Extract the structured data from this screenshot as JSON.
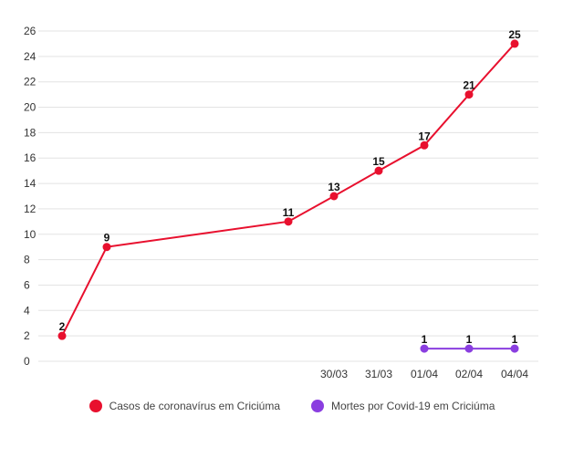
{
  "chart_data": {
    "type": "line",
    "x_ticks": [
      "30/03",
      "31/03",
      "01/04",
      "02/04",
      "04/04"
    ],
    "y_ticks": [
      0,
      2,
      4,
      6,
      8,
      10,
      12,
      14,
      16,
      18,
      20,
      22,
      24,
      26
    ],
    "ylim": [
      0,
      26
    ],
    "grid": true,
    "legend_position": "bottom",
    "series": [
      {
        "name": "Casos de coronavírus em Criciúma",
        "color": "#e8102e",
        "points": [
          {
            "x": "",
            "y": 2
          },
          {
            "x": "",
            "y": 9
          },
          {
            "x": "",
            "y": 11
          },
          {
            "x": "30/03",
            "y": 13
          },
          {
            "x": "31/03",
            "y": 15
          },
          {
            "x": "01/04",
            "y": 17
          },
          {
            "x": "02/04",
            "y": 21
          },
          {
            "x": "04/04",
            "y": 25
          }
        ]
      },
      {
        "name": "Mortes por Covid-19 em Criciúma",
        "color": "#8a3ee0",
        "points": [
          {
            "x": "01/04",
            "y": 1
          },
          {
            "x": "02/04",
            "y": 1
          },
          {
            "x": "04/04",
            "y": 1
          }
        ]
      }
    ]
  }
}
